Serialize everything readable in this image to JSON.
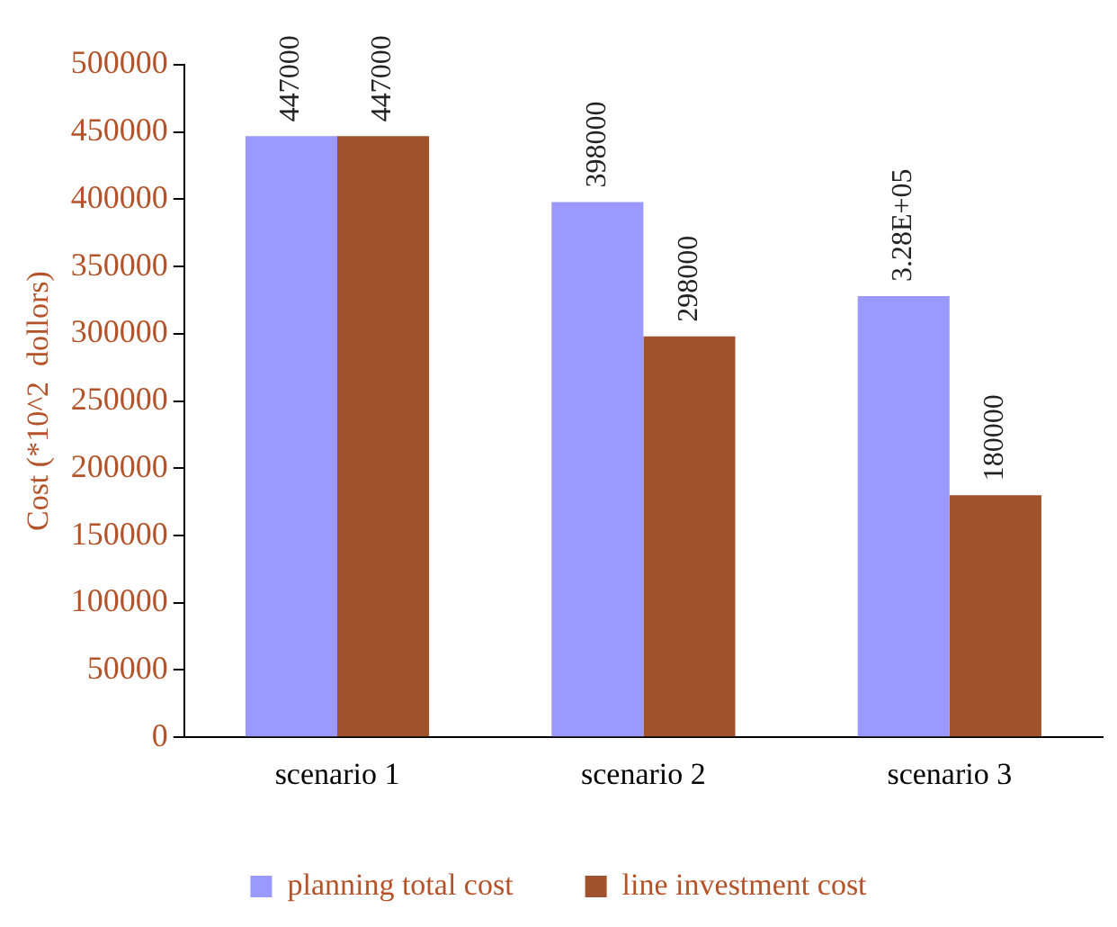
{
  "chart_data": {
    "type": "bar",
    "ylabel": "Cost (*10^2  dollors)",
    "categories": [
      "scenario 1",
      "scenario 2",
      "scenario 3"
    ],
    "series": [
      {
        "name": "planning total cost",
        "color": "#9999ff",
        "values": [
          447000,
          398000,
          328000
        ],
        "value_labels": [
          "447000",
          "398000",
          "3.28E+05"
        ]
      },
      {
        "name": "line investment cost",
        "color": "#a0522d",
        "values": [
          447000,
          298000,
          180000
        ],
        "value_labels": [
          "447000",
          "298000",
          "180000"
        ]
      }
    ],
    "ylim": [
      0,
      500000
    ],
    "yticks": [
      0,
      50000,
      100000,
      150000,
      200000,
      250000,
      300000,
      350000,
      400000,
      450000,
      500000
    ],
    "grid": false,
    "legend": "bottom"
  }
}
